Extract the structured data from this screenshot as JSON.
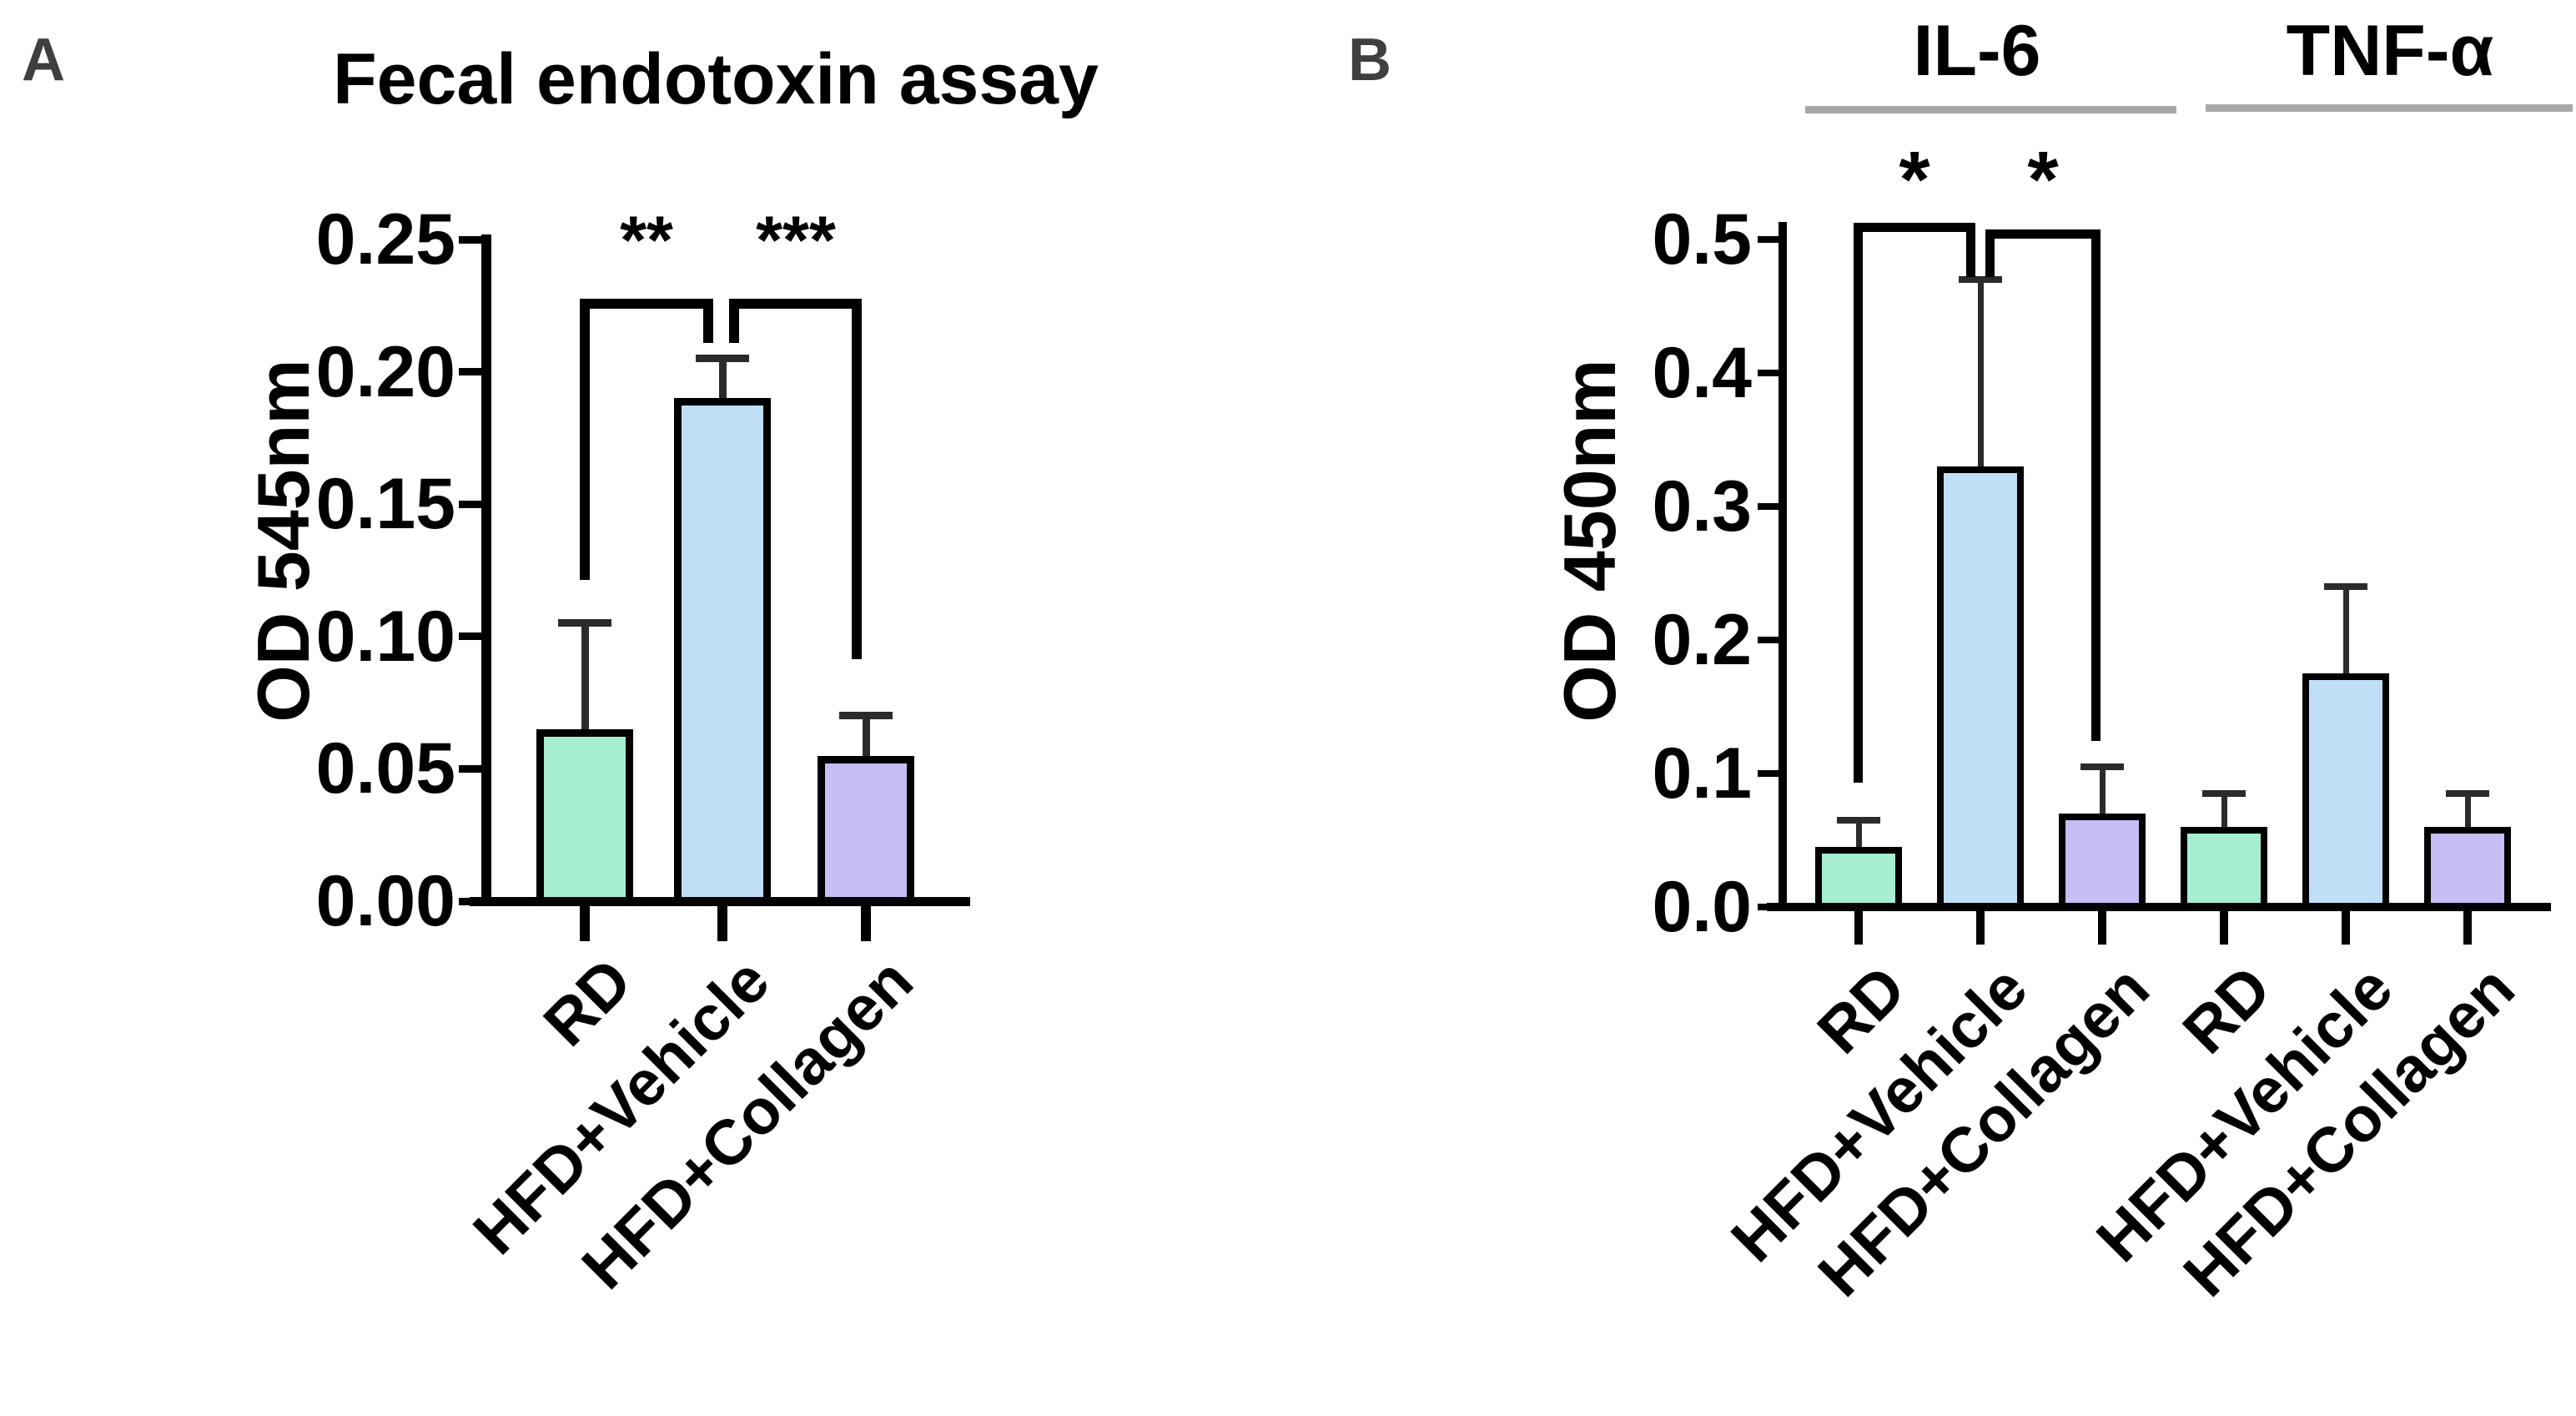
{
  "panel_a_label": "A",
  "panel_b_label": "B",
  "chart_data": [
    {
      "type": "bar",
      "panel": "A",
      "title": "Fecal endotoxin assay",
      "ylabel": "OD 545nm",
      "xlabel": "",
      "categories": [
        "RD",
        "HFD+Vehicle",
        "HFD+Collagen"
      ],
      "values": [
        0.065,
        0.19,
        0.055
      ],
      "error_bar_tops": [
        0.105,
        0.205,
        0.07
      ],
      "bar_colors": [
        "#a7edd1",
        "#bfdff7",
        "#c8bef5"
      ],
      "bar_edge_color": "#000000",
      "error_bar_color": "#2b2b2b",
      "ylim": [
        0,
        0.25
      ],
      "ytick_labels": [
        "0.25",
        "0.20",
        "0.15",
        "0.10",
        "0.05",
        "0.00"
      ],
      "grid": false,
      "legend": "none",
      "significance": [
        {
          "label": "**",
          "between": [
            "RD",
            "HFD+Vehicle"
          ]
        },
        {
          "label": "***",
          "between": [
            "HFD+Vehicle",
            "HFD+Collagen"
          ]
        }
      ]
    },
    {
      "type": "bar",
      "panel": "B",
      "title": "",
      "ylabel": "OD 450nm",
      "xlabel": "",
      "group_headers": [
        "IL-6",
        "TNF-α"
      ],
      "groups": [
        {
          "label": "IL-6",
          "bar_indices": [
            0,
            1,
            2
          ]
        },
        {
          "label": "TNF-α",
          "bar_indices": [
            3,
            4,
            5
          ]
        }
      ],
      "categories": [
        "RD",
        "HFD+Vehicle",
        "HFD+Collagen",
        "RD",
        "HFD+Vehicle",
        "HFD+Collagen"
      ],
      "values": [
        0.045,
        0.33,
        0.07,
        0.06,
        0.175,
        0.06
      ],
      "error_bar_tops": [
        0.065,
        0.47,
        0.105,
        0.085,
        0.24,
        0.085
      ],
      "bar_colors": [
        "#a7edd1",
        "#bfdff7",
        "#c8bef5",
        "#a7edd1",
        "#bfdff7",
        "#c8bef5"
      ],
      "bar_edge_color": "#000000",
      "error_bar_color": "#2b2b2b",
      "underline_color": "#a8a8a8",
      "ylim": [
        0,
        0.5
      ],
      "ytick_labels": [
        "0.5",
        "0.4",
        "0.3",
        "0.2",
        "0.1",
        "0.0"
      ],
      "grid": false,
      "legend": "none",
      "significance": [
        {
          "label": "*",
          "between": [
            "RD",
            "HFD+Vehicle"
          ]
        },
        {
          "label": "*",
          "between": [
            "HFD+Vehicle",
            "HFD+Collagen"
          ]
        }
      ]
    }
  ]
}
